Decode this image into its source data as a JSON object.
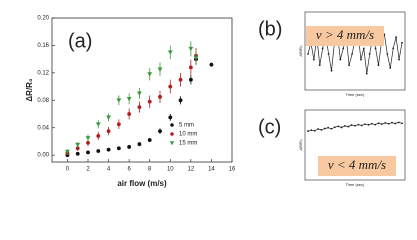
{
  "chart_data": [
    {
      "type": "scatter",
      "panel_label": "(a)",
      "xlabel": "air flow (m/s)",
      "ylabel": "ΔR/R₀",
      "xlim": [
        -1.5,
        16
      ],
      "ylim": [
        -0.01,
        0.2
      ],
      "xticks": [
        0,
        2,
        4,
        6,
        8,
        10,
        12,
        14,
        16
      ],
      "yticks": [
        {
          "value": 0,
          "label": "0.00"
        },
        {
          "value": 0.04,
          "label": "0.04"
        },
        {
          "value": 0.08,
          "label": "0.08"
        },
        {
          "value": 0.12,
          "label": "0.12"
        },
        {
          "value": 0.16,
          "label": "0.16"
        },
        {
          "value": 0.2,
          "label": "0.20"
        }
      ],
      "legend": "lower right",
      "series": [
        {
          "name": "5 mm",
          "color": "#111111",
          "marker": "circle",
          "x": [
            0,
            1,
            2,
            3,
            4,
            5,
            6,
            7,
            8,
            9,
            10,
            11,
            12,
            12.5,
            14
          ],
          "values": [
            0.0,
            0.002,
            0.004,
            0.006,
            0.008,
            0.01,
            0.012,
            0.016,
            0.022,
            0.035,
            0.055,
            0.08,
            0.11,
            0.14,
            0.132
          ],
          "errors": [
            0.002,
            0.002,
            0.002,
            0.002,
            0.002,
            0.002,
            0.003,
            0.003,
            0.003,
            0.004,
            0.005,
            0.006,
            0.007,
            0.007,
            0.003
          ]
        },
        {
          "name": "10 mm",
          "color": "#b02020",
          "marker": "circle",
          "x": [
            0,
            1,
            2,
            3,
            4,
            5,
            6,
            7,
            8,
            9,
            10,
            11,
            12,
            12.5
          ],
          "values": [
            0.003,
            0.01,
            0.018,
            0.028,
            0.035,
            0.045,
            0.06,
            0.07,
            0.078,
            0.085,
            0.1,
            0.11,
            0.128,
            0.145
          ],
          "errors": [
            0.003,
            0.004,
            0.005,
            0.006,
            0.006,
            0.007,
            0.008,
            0.008,
            0.009,
            0.009,
            0.01,
            0.01,
            0.011,
            0.011
          ]
        },
        {
          "name": "15 mm",
          "color": "#3a9a3a",
          "marker": "triangle",
          "x": [
            0,
            1,
            2,
            3,
            4,
            5,
            6,
            7,
            8,
            9,
            10,
            12,
            12.5
          ],
          "values": [
            0.005,
            0.015,
            0.025,
            0.045,
            0.055,
            0.08,
            0.082,
            0.09,
            0.118,
            0.125,
            0.15,
            0.155,
            0.142
          ],
          "errors": [
            0.003,
            0.004,
            0.005,
            0.006,
            0.006,
            0.007,
            0.008,
            0.008,
            0.009,
            0.01,
            0.01,
            0.011,
            0.011
          ]
        }
      ]
    },
    {
      "type": "line",
      "panel_label": "(b)",
      "annotation": "v > 4 mm/s",
      "xlabel": "Time (sec)",
      "ylabel": "ΔR/R₀",
      "ylim": [
        0,
        10
      ],
      "color": "#222222",
      "values": [
        5,
        7,
        4,
        8,
        3,
        6,
        8.5,
        5,
        2,
        7,
        9,
        4,
        6,
        8,
        3,
        5,
        7.5,
        9,
        4,
        6,
        1.5,
        5,
        8,
        6,
        3,
        7,
        8.5,
        5,
        2.5,
        6,
        8,
        4,
        7
      ]
    },
    {
      "type": "line",
      "panel_label": "(c)",
      "annotation": "v < 4 mm/s",
      "xlabel": "Time (sec)",
      "ylabel": "ΔR/R₀",
      "ylim": [
        0,
        10
      ],
      "color": "#222222",
      "values": [
        4,
        4.5,
        4.2,
        5,
        4.6,
        5.2,
        5.6,
        5.1,
        5.8,
        6.2,
        5.7,
        6.4,
        6.1,
        6.8,
        6.5,
        7,
        6.6,
        7.2,
        6.9,
        7.4,
        7,
        7.6,
        7.2,
        7.8,
        7.4,
        7.9,
        7.5,
        8,
        7.6
      ]
    }
  ]
}
